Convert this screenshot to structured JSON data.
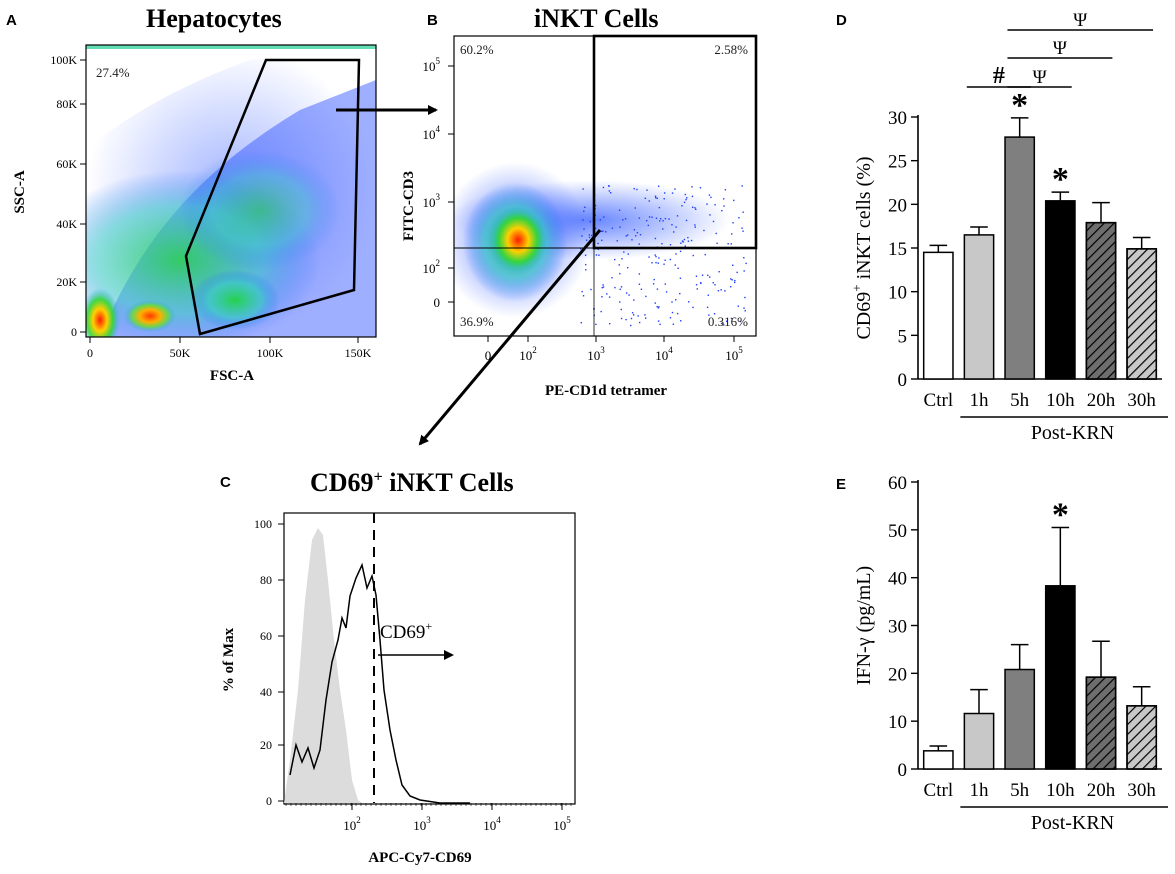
{
  "panels": {
    "A": {
      "letter": "A",
      "title": "Hepatocytes",
      "xlabel": "FSC-A",
      "ylabel": "SSC-A",
      "xticks": [
        "0",
        "50K",
        "100K",
        "150K"
      ],
      "yticks": [
        "0",
        "20K",
        "40K",
        "60K",
        "80K",
        "100K"
      ],
      "gate_percent": "27.4%"
    },
    "B": {
      "letter": "B",
      "title": "iNKT Cells",
      "xlabel": "PE-CD1d tetramer",
      "ylabel": "FITC-CD3",
      "xticks": [
        "0",
        "10",
        "10",
        "10",
        "10"
      ],
      "xtick_exps": [
        "",
        "2",
        "3",
        "4",
        "5"
      ],
      "yticks": [
        "0",
        "10",
        "10",
        "10",
        "10"
      ],
      "ytick_exps": [
        "",
        "2",
        "3",
        "4",
        "5"
      ],
      "quadrants": {
        "top_left": "60.2%",
        "top_right": "2.58%",
        "bottom_left": "36.9%",
        "bottom_right": "0.316%"
      }
    },
    "C": {
      "letter": "C",
      "title": "CD69",
      "title_sup": "+",
      "title_rest": " iNKT Cells",
      "xlabel": "APC-Cy7-CD69",
      "ylabel": "% of Max",
      "xticks": [
        "10",
        "10",
        "10",
        "10"
      ],
      "xtick_exps": [
        "2",
        "3",
        "4",
        "5"
      ],
      "yticks": [
        "0",
        "20",
        "40",
        "60",
        "80",
        "100"
      ],
      "gate_label": "CD69",
      "gate_label_sup": "+"
    },
    "D": {
      "letter": "D"
    },
    "E": {
      "letter": "E"
    }
  },
  "chart_data": [
    {
      "id": "D",
      "type": "bar",
      "categories": [
        "Ctrl",
        "1h",
        "5h",
        "10h",
        "20h",
        "30h"
      ],
      "values": [
        14.5,
        16.5,
        27.7,
        20.4,
        17.9,
        14.9
      ],
      "errors": [
        0.8,
        0.9,
        2.2,
        1.0,
        2.3,
        1.3
      ],
      "ylabel_main": "CD69",
      "ylabel_sup": "+",
      "ylabel_rest": " iNKT cells (%)",
      "ylim": [
        0,
        30
      ],
      "yticks": [
        "0",
        "5",
        "10",
        "15",
        "20",
        "25",
        "30"
      ],
      "group_label": "Post-KRN",
      "significance": [
        {
          "mark": "*",
          "category": "5h"
        },
        {
          "mark": "*",
          "category": "10h"
        }
      ],
      "comparisons": [
        {
          "mark": "#",
          "from": "1h",
          "to": "5h"
        },
        {
          "mark": "Ψ",
          "from": "5h",
          "to": "10h"
        },
        {
          "mark": "Ψ",
          "from": "5h",
          "to": "20h"
        },
        {
          "mark": "Ψ",
          "from": "5h",
          "to": "30h"
        }
      ]
    },
    {
      "id": "E",
      "type": "bar",
      "categories": [
        "Ctrl",
        "1h",
        "5h",
        "10h",
        "20h",
        "30h"
      ],
      "values": [
        3.8,
        11.6,
        20.8,
        38.3,
        19.2,
        13.2
      ],
      "errors": [
        1.0,
        5.0,
        5.2,
        12.2,
        7.5,
        4.0
      ],
      "ylabel_main": "IFN-γ (pg/mL)",
      "ylim": [
        0,
        60
      ],
      "yticks": [
        "0",
        "10",
        "20",
        "30",
        "40",
        "50",
        "60"
      ],
      "group_label": "Post-KRN",
      "significance": [
        {
          "mark": "*",
          "category": "10h"
        }
      ]
    }
  ],
  "bar_styles": [
    {
      "fill": "#ffffff",
      "hatch": false
    },
    {
      "fill": "#c8c8c8",
      "hatch": false
    },
    {
      "fill": "#7f7f7f",
      "hatch": false
    },
    {
      "fill": "#000000",
      "hatch": false
    },
    {
      "fill": "#6e6e6e",
      "hatch": true
    },
    {
      "fill": "#c8c8c8",
      "hatch": true
    }
  ],
  "colors": {
    "density_high": "#ff2a00",
    "density_mid": "#1fd02a",
    "density_low": "#1f3fff",
    "histogram_fill": "#dcdcdc"
  }
}
